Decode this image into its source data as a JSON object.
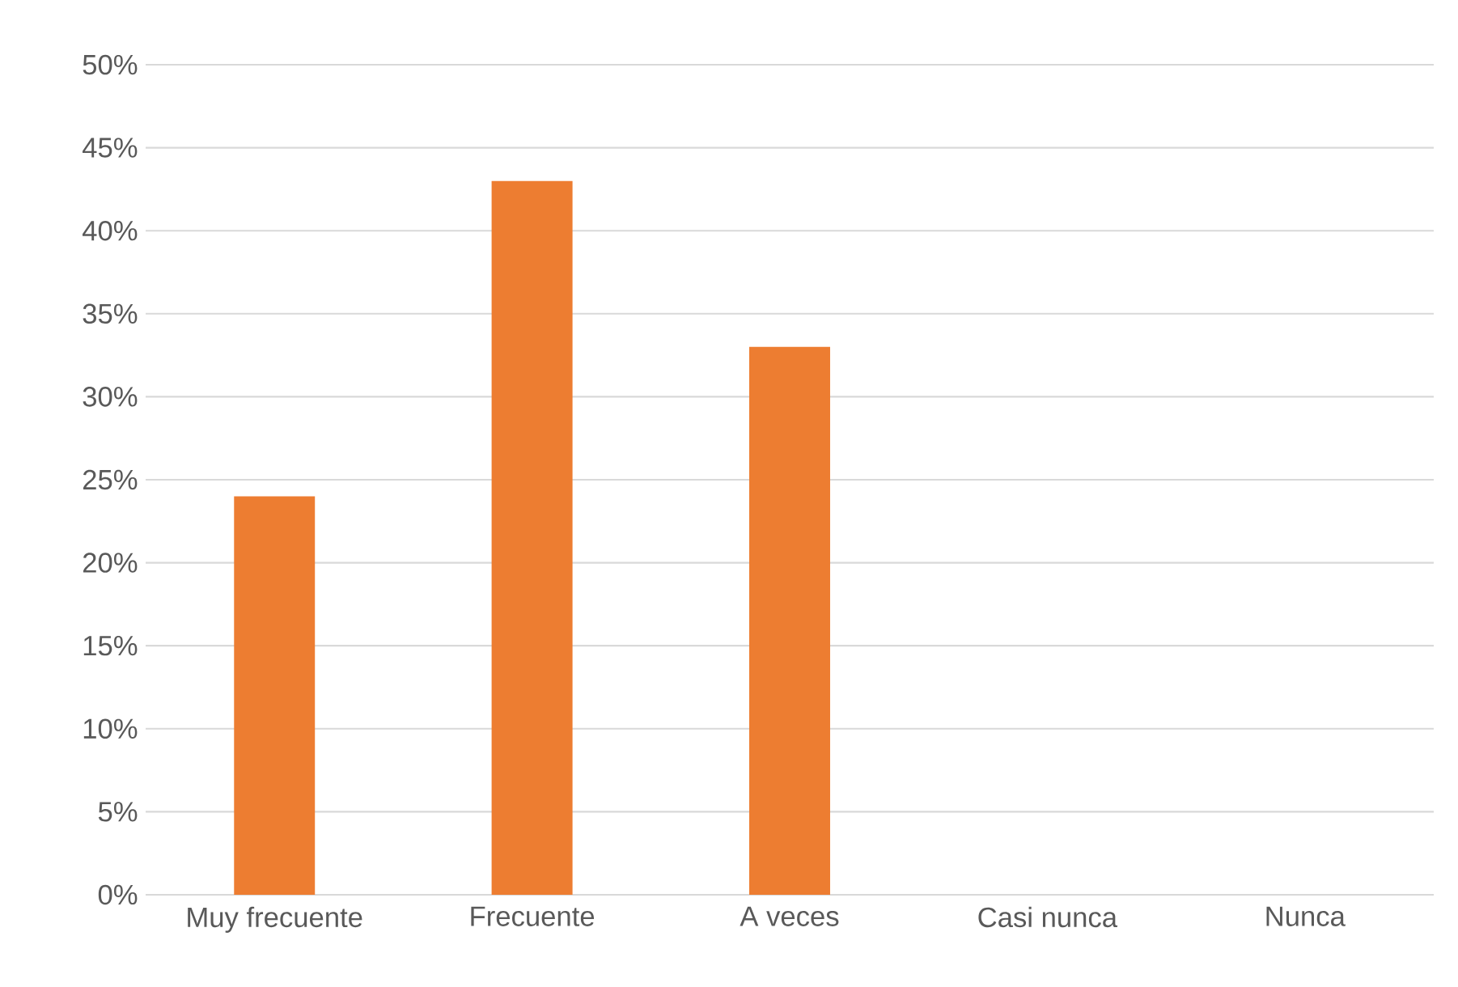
{
  "chart_data": {
    "type": "bar",
    "categories": [
      "Muy frecuente",
      "Frecuente",
      "A veces",
      "Casi nunca",
      "Nunca"
    ],
    "values": [
      24,
      43,
      33,
      0,
      0
    ],
    "color": "#ed7d31",
    "ylim": [
      0,
      50
    ],
    "yticks": [
      {
        "value": 0,
        "label": "0%"
      },
      {
        "value": 5,
        "label": "5%"
      },
      {
        "value": 10,
        "label": "10%"
      },
      {
        "value": 15,
        "label": "15%"
      },
      {
        "value": 20,
        "label": "20%"
      },
      {
        "value": 25,
        "label": "25%"
      },
      {
        "value": 30,
        "label": "30%"
      },
      {
        "value": 35,
        "label": "35%"
      },
      {
        "value": 40,
        "label": "40%"
      },
      {
        "value": 45,
        "label": "45%"
      },
      {
        "value": 50,
        "label": "50%"
      }
    ],
    "grid": "y"
  }
}
